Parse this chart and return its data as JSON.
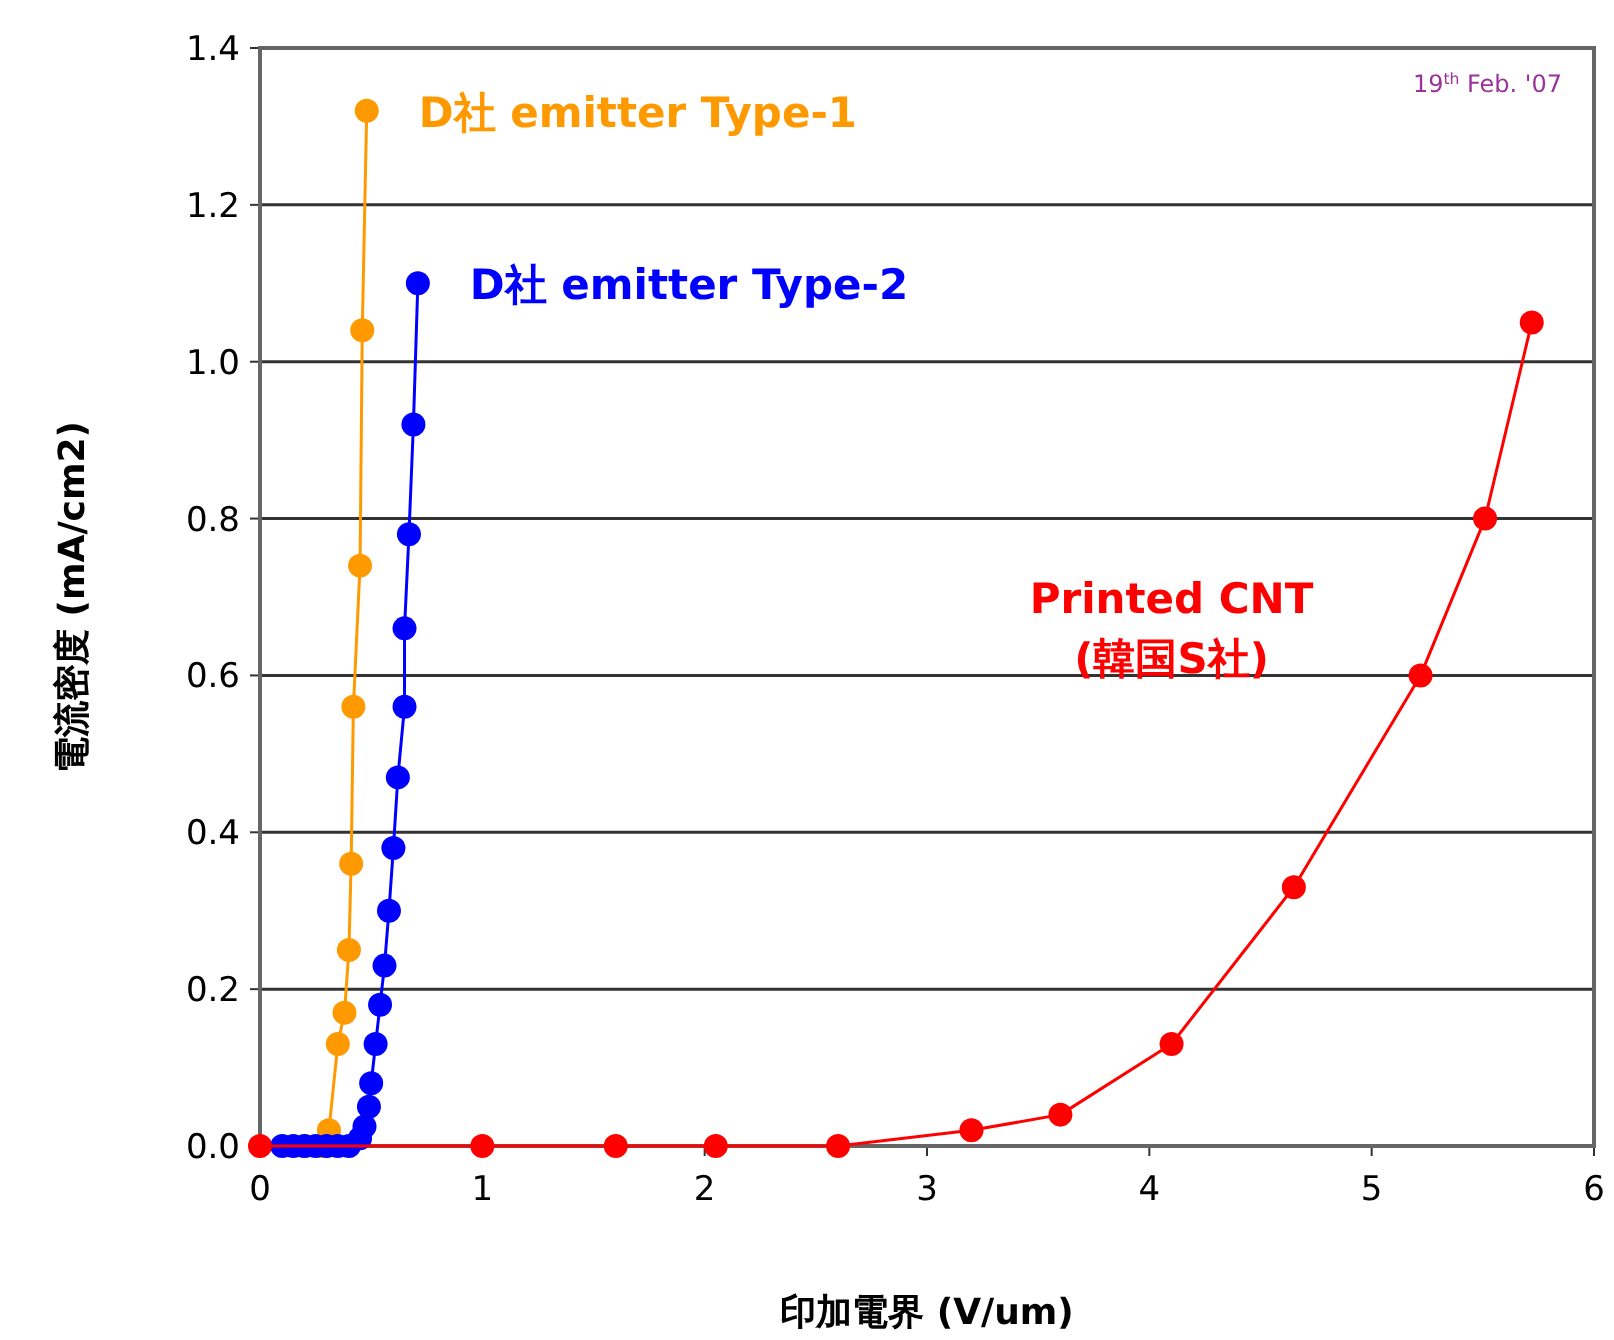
{
  "chart_data": {
    "type": "line",
    "xlabel": "印加電界 (V/um)",
    "ylabel": "電流密度 (mA/cm2)",
    "xlim": [
      0,
      6
    ],
    "ylim": [
      0,
      1.4
    ],
    "xticks": [
      0,
      1,
      2,
      3,
      4,
      5,
      6
    ],
    "yticks": [
      {
        "value": 0,
        "label": "0.0"
      },
      0.2,
      0.4,
      0.6,
      0.8,
      {
        "value": 1,
        "label": "1.0"
      },
      1.2,
      1.4
    ],
    "grid": "y",
    "marker": "circle",
    "line_style": "solid",
    "annotations": [
      "19$^{th}$ Feb. '07"
    ],
    "series": [
      {
        "name": "D社 emitter Type-1",
        "color": "#ff9900",
        "x": [
          0.2,
          0.28,
          0.31,
          0.35,
          0.38,
          0.4,
          0.41,
          0.42,
          0.45,
          0.46,
          0.48
        ],
        "values": [
          0,
          0,
          0.02,
          0.13,
          0.17,
          0.25,
          0.36,
          0.56,
          0.74,
          1.04,
          1.32
        ]
      },
      {
        "name": "D社 emitter Type-2",
        "color": "#0000ff",
        "x": [
          0.1,
          0.15,
          0.2,
          0.25,
          0.3,
          0.35,
          0.4,
          0.45,
          0.47,
          0.49,
          0.5,
          0.52,
          0.54,
          0.56,
          0.58,
          0.6,
          0.62,
          0.65,
          0.65,
          0.67,
          0.69,
          0.71
        ],
        "values": [
          0,
          0,
          0,
          0,
          0,
          0,
          0,
          0.01,
          0.025,
          0.05,
          0.08,
          0.13,
          0.18,
          0.23,
          0.3,
          0.38,
          0.47,
          0.56,
          0.66,
          0.78,
          0.92,
          1.1
        ]
      },
      {
        "name": "Printed CNT\n(韓国S社)",
        "color": "#ff0000",
        "x": [
          0,
          1,
          1.6,
          2.05,
          2.6,
          3.2,
          3.6,
          4.1,
          4.65,
          5.22,
          5.51,
          5.72
        ],
        "values": [
          0,
          0,
          0,
          0,
          0,
          0.02,
          0.04,
          0.13,
          0.33,
          0.6,
          0.8,
          1.05
        ]
      }
    ]
  }
}
